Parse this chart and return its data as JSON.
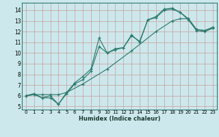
{
  "bg_color": "#cce8ec",
  "grid_color": "#b8d8dc",
  "line_color": "#2d7a6e",
  "xlabel": "Humidex (Indice chaleur)",
  "xlim": [
    -0.5,
    23.5
  ],
  "ylim": [
    4.7,
    14.7
  ],
  "xticks": [
    0,
    1,
    2,
    3,
    4,
    5,
    6,
    7,
    8,
    9,
    10,
    11,
    12,
    13,
    14,
    15,
    16,
    17,
    18,
    19,
    20,
    21,
    22,
    23
  ],
  "yticks": [
    5,
    6,
    7,
    8,
    9,
    10,
    11,
    12,
    13,
    14
  ],
  "line1_x": [
    0,
    1,
    2,
    3,
    4,
    5,
    6,
    7,
    8,
    9,
    10,
    11,
    12,
    13,
    14,
    15,
    16,
    17,
    18,
    19,
    20,
    21,
    22,
    23
  ],
  "line1_y": [
    6.0,
    6.2,
    5.8,
    6.0,
    5.2,
    6.3,
    7.2,
    7.8,
    8.5,
    11.4,
    10.0,
    10.4,
    10.5,
    11.6,
    11.1,
    13.1,
    13.4,
    14.1,
    14.2,
    13.8,
    13.2,
    12.2,
    12.1,
    12.4
  ],
  "line2_x": [
    0,
    1,
    2,
    3,
    4,
    5,
    6,
    7,
    8,
    9,
    10,
    11,
    12,
    13,
    14,
    15,
    16,
    17,
    18,
    19,
    20,
    21,
    22,
    23
  ],
  "line2_y": [
    6.0,
    6.1,
    5.8,
    5.8,
    5.2,
    6.2,
    7.1,
    7.5,
    8.3,
    10.6,
    10.0,
    10.3,
    10.5,
    11.7,
    11.0,
    13.1,
    13.3,
    14.0,
    14.1,
    13.8,
    13.1,
    12.1,
    12.0,
    12.3
  ],
  "line3_x": [
    0,
    1,
    2,
    3,
    4,
    5,
    7,
    10,
    13,
    16,
    18,
    19,
    20,
    21,
    22,
    23
  ],
  "line3_y": [
    6.0,
    6.1,
    6.1,
    6.1,
    6.1,
    6.3,
    7.1,
    8.5,
    10.2,
    12.0,
    13.0,
    13.2,
    13.2,
    12.2,
    12.1,
    12.4
  ]
}
